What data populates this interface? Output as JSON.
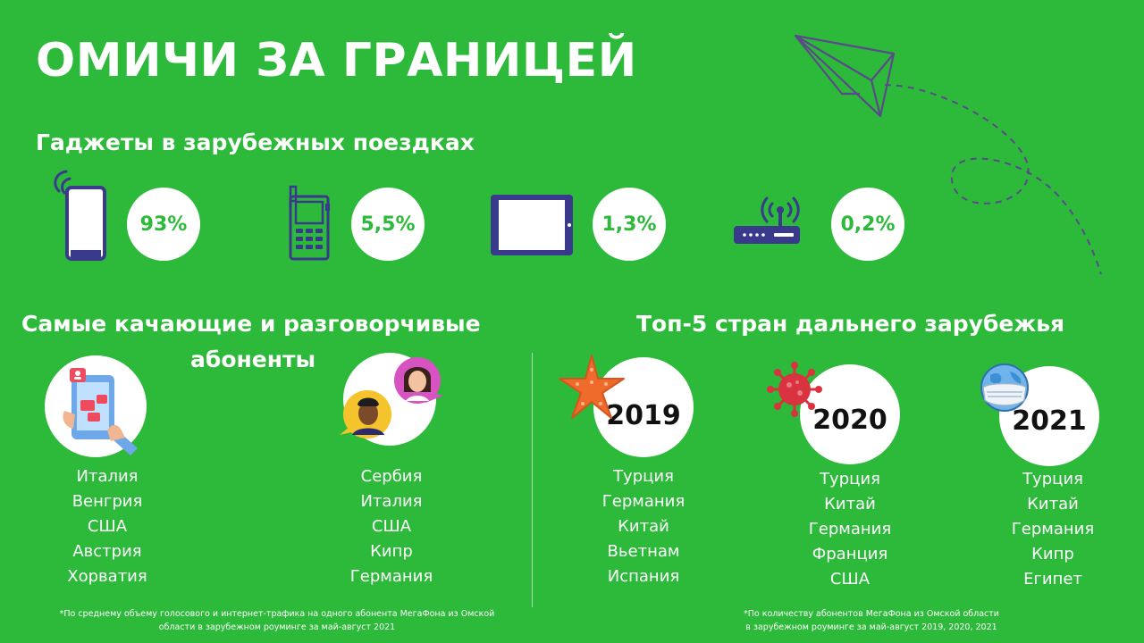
{
  "title": "ОМИЧИ ЗА ГРАНИЦЕЙ",
  "gadgets": {
    "heading": "Гаджеты в зарубежных поездках",
    "items": [
      {
        "icon": "smartphone-icon",
        "value": "93%"
      },
      {
        "icon": "feature-phone-icon",
        "value": "5,5%"
      },
      {
        "icon": "tablet-icon",
        "value": "1,3%"
      },
      {
        "icon": "router-icon",
        "value": "0,2%"
      }
    ]
  },
  "active": {
    "heading_line1": "Самые качающие и разговорчивые",
    "heading_line2": "абоненты",
    "downloaders": [
      "Италия",
      "Венгрия",
      "США",
      "Австрия",
      "Хорватия"
    ],
    "talkers": [
      "Сербия",
      "Италия",
      "США",
      "Кипр",
      "Германия"
    ],
    "note_line1": "*По среднему объему голосового и интернет-трафика на одного абонента МегаФона из Омской",
    "note_line2": "области в зарубежном роуминге за май-август 2021"
  },
  "top5": {
    "heading": "Топ-5 стран дальнего зарубежья",
    "years": [
      {
        "year": "2019",
        "icon": "starfish-icon",
        "countries": [
          "Турция",
          "Германия",
          "Китай",
          "Вьетнам",
          "Испания"
        ]
      },
      {
        "year": "2020",
        "icon": "virus-icon",
        "countries": [
          "Турция",
          "Китай",
          "Германия",
          "Франция",
          "США"
        ]
      },
      {
        "year": "2021",
        "icon": "masked-globe-icon",
        "countries": [
          "Турция",
          "Китай",
          "Германия",
          "Кипр",
          "Египет"
        ]
      }
    ],
    "note_line1": "*По количеству абонентов  МегаФона из Омской области",
    "note_line2": "в зарубежном роуминге за май-август 2019, 2020, 2021"
  },
  "colors": {
    "background": "#2db93a",
    "icon_navy": "#3a3a8c",
    "accent_purple": "#5b4a8a",
    "text": "#ffffff"
  }
}
